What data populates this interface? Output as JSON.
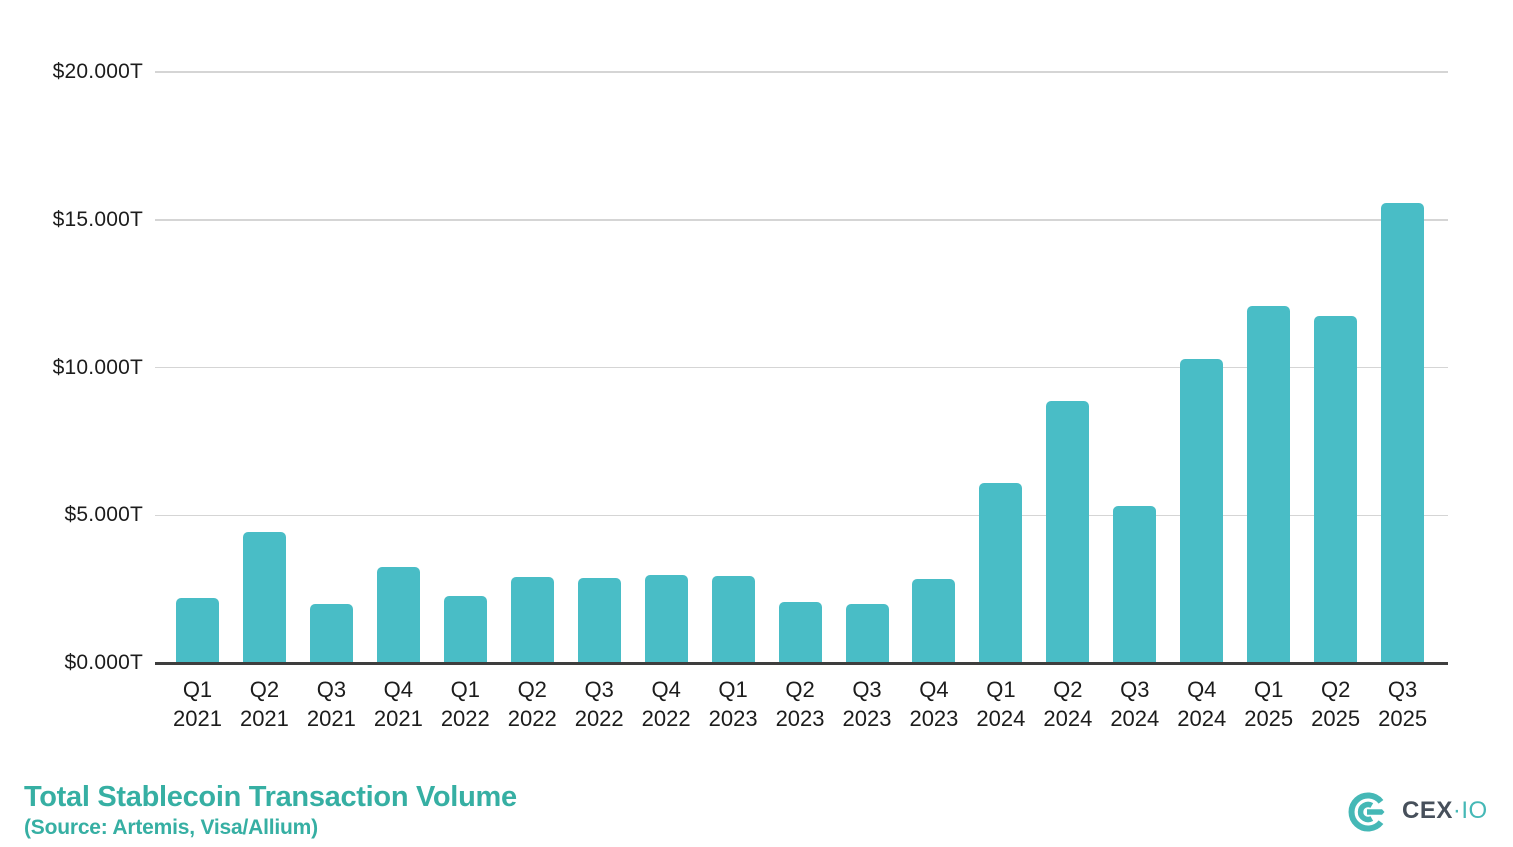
{
  "chart_data": {
    "type": "bar",
    "title": "Total Stablecoin Transaction Volume",
    "source_note": "(Source: Artemis, Visa/Allium)",
    "unit": "USD trillions",
    "categories": [
      "Q1 2021",
      "Q2 2021",
      "Q3 2021",
      "Q4 2021",
      "Q1 2022",
      "Q2 2022",
      "Q3 2022",
      "Q4 2022",
      "Q1 2023",
      "Q2 2023",
      "Q3 2023",
      "Q4 2023",
      "Q1 2024",
      "Q2 2024",
      "Q3 2024",
      "Q4 2024",
      "Q1 2025",
      "Q2 2025",
      "Q3 2025"
    ],
    "values": [
      2.2,
      4.43,
      2.01,
      3.25,
      2.27,
      2.91,
      2.86,
      2.99,
      2.93,
      2.06,
      2.0,
      2.84,
      6.09,
      8.87,
      5.31,
      10.29,
      12.08,
      11.74,
      15.57
    ],
    "ylim": [
      0,
      20
    ],
    "yticks": [
      {
        "value": 0,
        "label": "$0.000T"
      },
      {
        "value": 5,
        "label": "$5.000T"
      },
      {
        "value": 10,
        "label": "$10.000T"
      },
      {
        "value": 15,
        "label": "$15.000T"
      },
      {
        "value": 20,
        "label": "$20.000T"
      }
    ],
    "grid": true,
    "legend": false,
    "bar_color": "#49BDC6"
  },
  "footer": {
    "title": "Total Stablecoin Transaction Volume",
    "source": "(Source: Artemis, Visa/Allium)"
  },
  "logo": {
    "icon": "cexio-swirl-icon",
    "brand_primary": "CEX",
    "separator": "·",
    "brand_secondary": "IO"
  },
  "colors": {
    "bar": "#49BDC6",
    "title_teal": "#36AFA3",
    "axis_text": "#1C1C1C",
    "gridline": "#D5D5D5",
    "axis_line": "#3E3E3E",
    "logo_dark": "#47505B",
    "logo_teal": "#45B8B6"
  }
}
